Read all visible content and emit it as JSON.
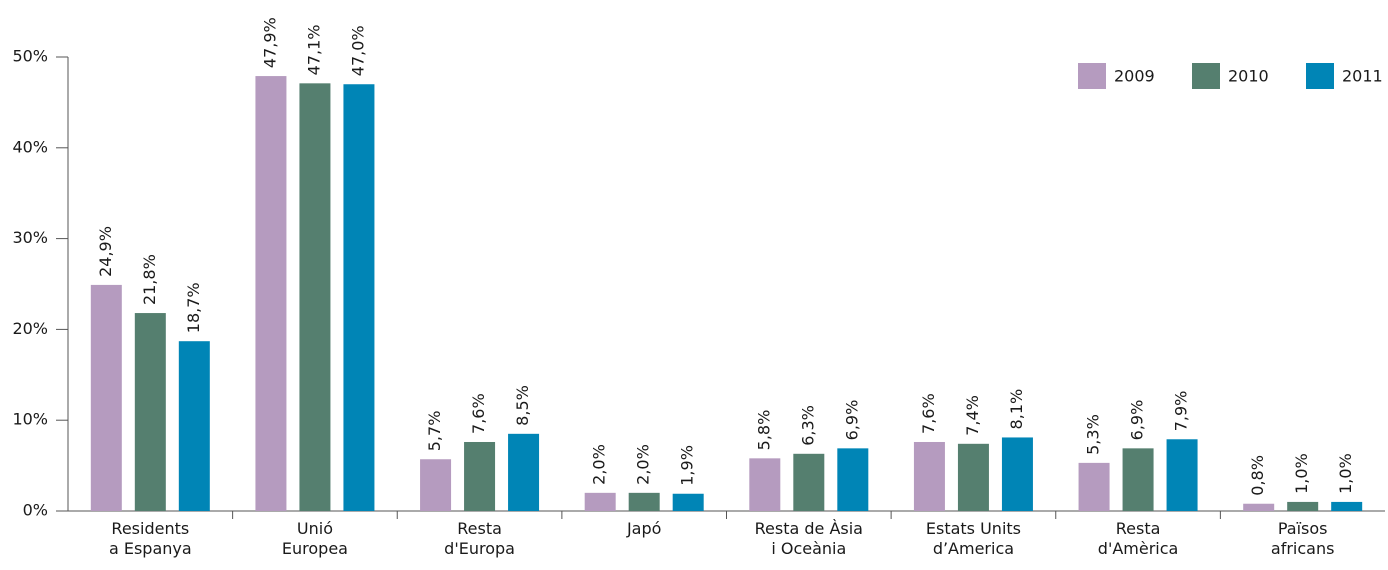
{
  "chart_data": {
    "type": "bar",
    "categories": [
      [
        "Residents",
        "a Espanya"
      ],
      [
        "Unió",
        "Europea"
      ],
      [
        "Resta",
        "d'Europa"
      ],
      [
        "Japó"
      ],
      [
        "Resta de Àsia",
        "i Oceània"
      ],
      [
        "Estats Units",
        "d’America"
      ],
      [
        "Resta",
        "d'Amèrica"
      ],
      [
        "Països",
        "africans"
      ]
    ],
    "series": [
      {
        "name": "2009",
        "color": "#b59bbf",
        "values": [
          24.9,
          47.9,
          5.7,
          2.0,
          5.8,
          7.6,
          5.3,
          0.8
        ],
        "value_labels": [
          "24,9%",
          "47,9%",
          "5,7%",
          "2,0%",
          "5,8%",
          "7,6%",
          "5,3%",
          "0,8%"
        ]
      },
      {
        "name": "2010",
        "color": "#557f6f",
        "values": [
          21.8,
          47.1,
          7.6,
          2.0,
          6.3,
          7.4,
          6.9,
          1.0
        ],
        "value_labels": [
          "21,8%",
          "47,1%",
          "7,6%",
          "2,0%",
          "6,3%",
          "7,4%",
          "6,9%",
          "1,0%"
        ]
      },
      {
        "name": "2011",
        "color": "#0085b6",
        "values": [
          18.7,
          47.0,
          8.5,
          1.9,
          6.9,
          8.1,
          7.9,
          1.0
        ],
        "value_labels": [
          "18,7%",
          "47,0%",
          "8,5%",
          "1,9%",
          "6,9%",
          "8,1%",
          "7,9%",
          "1,0%"
        ]
      }
    ],
    "ylim": [
      0,
      50
    ],
    "yticks": [
      {
        "value": 0,
        "label": "0%"
      },
      {
        "value": 10,
        "label": "10%"
      },
      {
        "value": 20,
        "label": "20%"
      },
      {
        "value": 30,
        "label": "30%"
      },
      {
        "value": 40,
        "label": "40%"
      },
      {
        "value": 50,
        "label": "50%"
      }
    ],
    "legend": "top-right"
  }
}
